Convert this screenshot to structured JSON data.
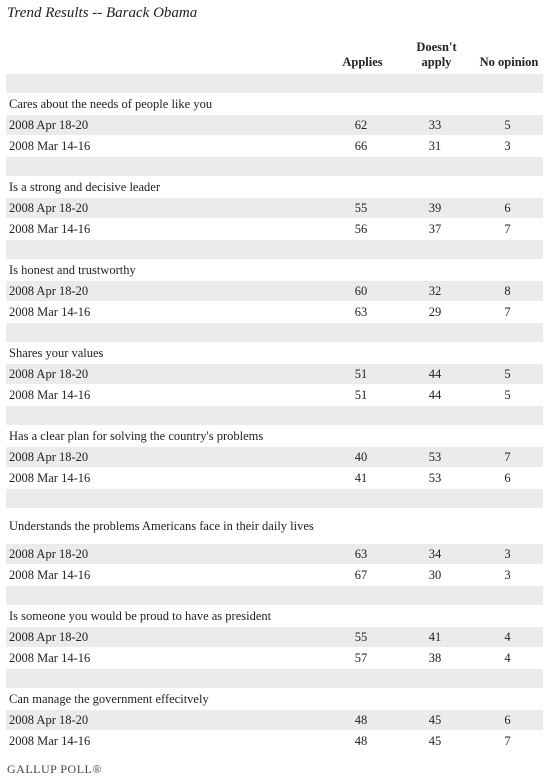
{
  "title": "Trend Results -- Barack Obama",
  "columns": [
    "Applies",
    "Doesn't apply",
    "No opinion"
  ],
  "items": [
    {
      "label": "Cares about the needs of people like you",
      "rows": [
        {
          "date": "2008 Apr 18-20",
          "values": [
            62,
            33,
            5
          ]
        },
        {
          "date": "2008 Mar 14-16",
          "values": [
            66,
            31,
            3
          ]
        }
      ]
    },
    {
      "label": "Is a strong and decisive leader",
      "rows": [
        {
          "date": "2008 Apr 18-20",
          "values": [
            55,
            39,
            6
          ]
        },
        {
          "date": "2008 Mar 14-16",
          "values": [
            56,
            37,
            7
          ]
        }
      ]
    },
    {
      "label": "Is honest and trustworthy",
      "rows": [
        {
          "date": "2008 Apr 18-20",
          "values": [
            60,
            32,
            8
          ]
        },
        {
          "date": "2008 Mar 14-16",
          "values": [
            63,
            29,
            7
          ]
        }
      ]
    },
    {
      "label": "Shares your values",
      "rows": [
        {
          "date": "2008 Apr 18-20",
          "values": [
            51,
            44,
            5
          ]
        },
        {
          "date": "2008 Mar 14-16",
          "values": [
            51,
            44,
            5
          ]
        }
      ]
    },
    {
      "label": "Has a clear plan for solving the country's problems",
      "rows": [
        {
          "date": "2008 Apr 18-20",
          "values": [
            40,
            53,
            7
          ]
        },
        {
          "date": "2008 Mar 14-16",
          "values": [
            41,
            53,
            6
          ]
        }
      ]
    },
    {
      "label": "Understands the problems Americans face in their daily lives",
      "rows": [
        {
          "date": "2008 Apr 18-20",
          "values": [
            63,
            34,
            3
          ]
        },
        {
          "date": "2008 Mar 14-16",
          "values": [
            67,
            30,
            3
          ]
        }
      ]
    },
    {
      "label": "Is someone you would be proud to have as president",
      "rows": [
        {
          "date": "2008 Apr 18-20",
          "values": [
            55,
            41,
            4
          ]
        },
        {
          "date": "2008 Mar 14-16",
          "values": [
            57,
            38,
            4
          ]
        }
      ]
    },
    {
      "label": "Can manage the government effecitvely",
      "rows": [
        {
          "date": "2008 Apr 18-20",
          "values": [
            48,
            45,
            6
          ]
        },
        {
          "date": "2008 Mar 14-16",
          "values": [
            48,
            45,
            7
          ]
        }
      ]
    }
  ],
  "footer": "GALLUP POLL®"
}
